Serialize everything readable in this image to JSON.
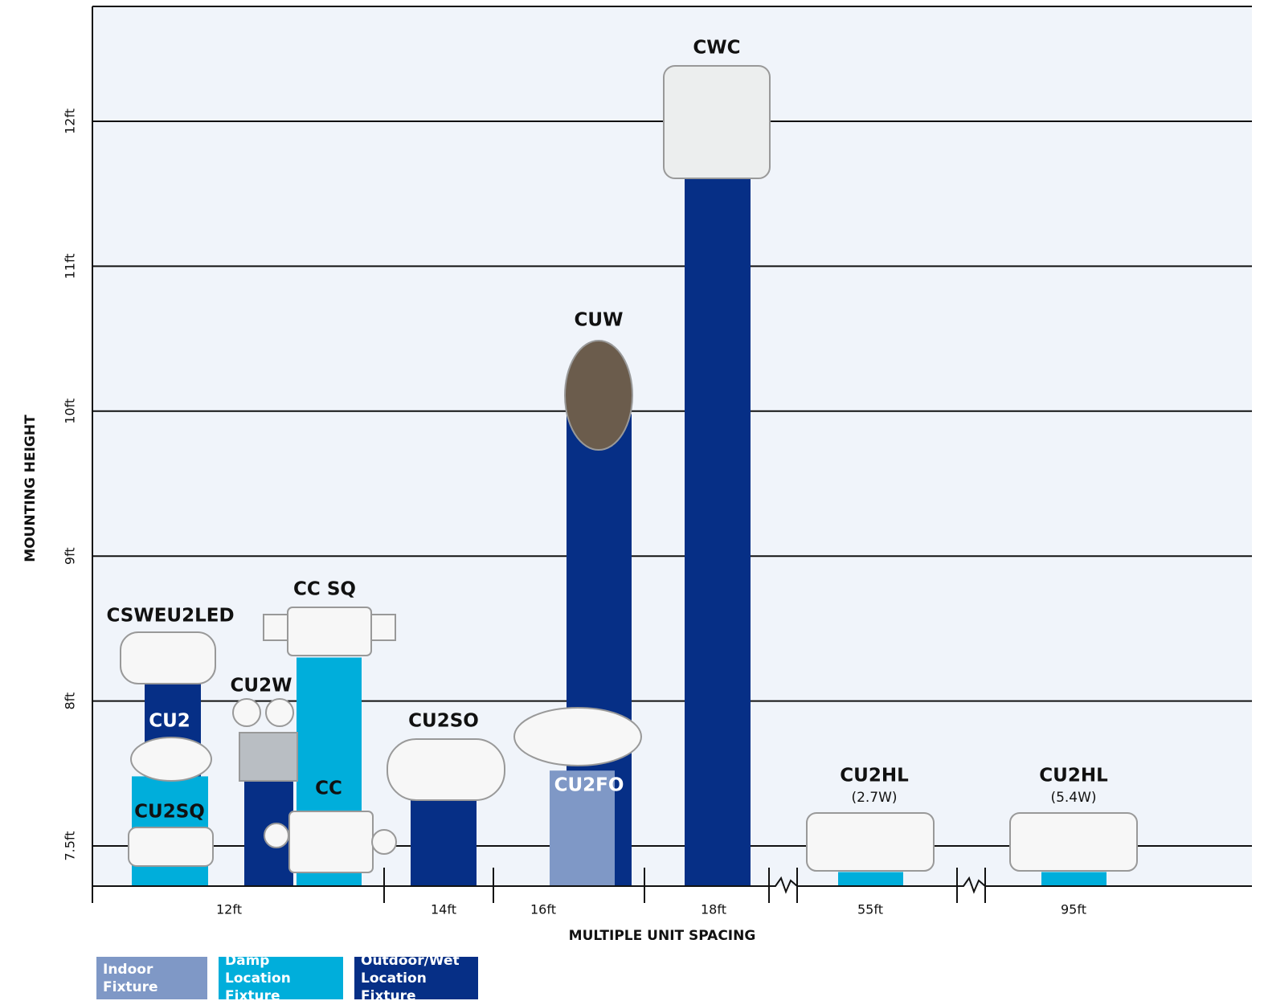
{
  "chart_data": {
    "type": "bar",
    "y_label": "MOUNTING HEIGHT",
    "x_label": "MULTIPLE UNIT SPACING",
    "categories": [
      "12ft",
      "14ft",
      "16ft",
      "18ft",
      "55ft",
      "95ft"
    ],
    "ylim": [
      7.36,
      12.8
    ],
    "yticks": [
      {
        "value": 7.5,
        "label": "7.5ft"
      },
      {
        "value": 8,
        "label": "8ft"
      },
      {
        "value": 9,
        "label": "9ft"
      },
      {
        "value": 10,
        "label": "10ft"
      },
      {
        "value": 11,
        "label": "11ft"
      },
      {
        "value": 12,
        "label": "12ft"
      }
    ],
    "grid": true,
    "series": [
      {
        "name": "Indoor Fixture",
        "color": "#7f98c6",
        "bars": [
          {
            "label": "CU2FO",
            "category": "16ft",
            "value": 7.76
          }
        ]
      },
      {
        "name": "Damp Location Fixture",
        "color": "#00aedb",
        "bars": [
          {
            "label": "CU2",
            "category": "12ft",
            "value": 7.74
          },
          {
            "label": "CU2SQ",
            "category": "12ft",
            "value": 7.6
          },
          {
            "label": "CC SQ",
            "category": "12ft",
            "value": 8.3
          },
          {
            "label": "CC",
            "category": "12ft",
            "value": 7.7
          },
          {
            "label": "CU2HL",
            "note": "(2.7W)",
            "category": "55ft",
            "value": 7.41
          },
          {
            "label": "CU2HL",
            "note": "(5.4W)",
            "category": "95ft",
            "value": 7.41
          }
        ]
      },
      {
        "name": "Outdoor/Wet Location Fixture",
        "color": "#062f86",
        "bars": [
          {
            "label": "CSWEU2LED",
            "category": "12ft",
            "value": 8.15
          },
          {
            "label": "CU2W",
            "category": "12ft",
            "value": 7.73
          },
          {
            "label": "CU2SO",
            "category": "14ft",
            "value": 7.67
          },
          {
            "label": "CUW",
            "category": "16ft",
            "value": 9.98
          },
          {
            "label": "CWC",
            "category": "18ft",
            "value": 11.65
          }
        ]
      }
    ]
  }
}
